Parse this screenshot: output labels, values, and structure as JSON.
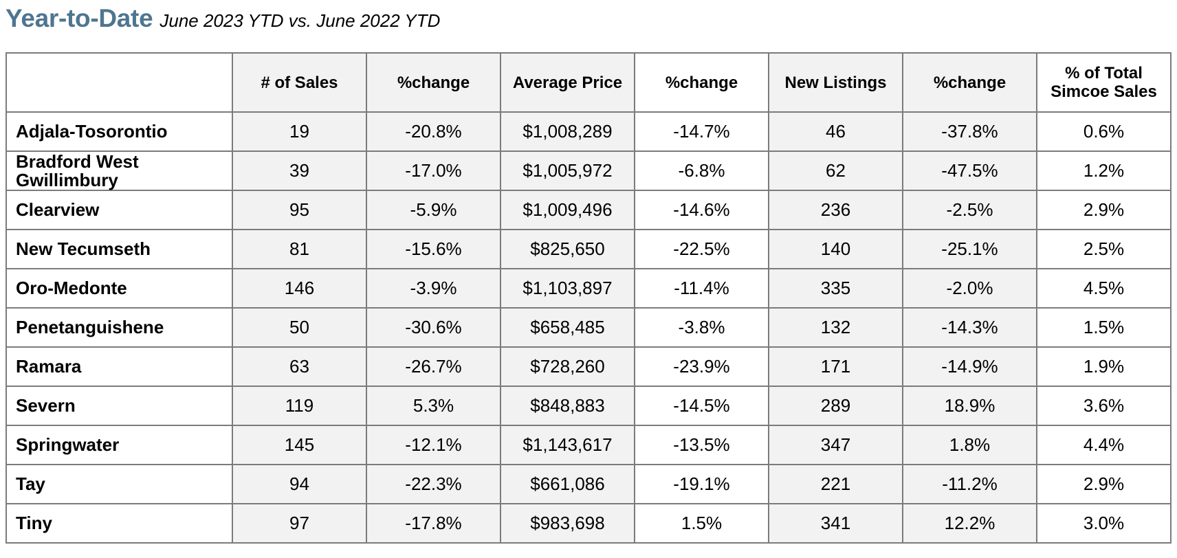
{
  "heading": {
    "title": "Year-to-Date",
    "subtitle": "June 2023 YTD vs. June 2022 YTD"
  },
  "columns": [
    "",
    "# of Sales",
    "%change",
    "Average Price",
    "%change",
    "New Listings",
    "%change",
    "% of Total Simcoe Sales"
  ],
  "rows": [
    [
      "Adjala-Tosorontio",
      "19",
      "-20.8%",
      "$1,008,289",
      "-14.7%",
      "46",
      "-37.8%",
      "0.6%"
    ],
    [
      "Bradford West Gwillimbury",
      "39",
      "-17.0%",
      "$1,005,972",
      "-6.8%",
      "62",
      "-47.5%",
      "1.2%"
    ],
    [
      "Clearview",
      "95",
      "-5.9%",
      "$1,009,496",
      "-14.6%",
      "236",
      "-2.5%",
      "2.9%"
    ],
    [
      "New Tecumseth",
      "81",
      "-15.6%",
      "$825,650",
      "-22.5%",
      "140",
      "-25.1%",
      "2.5%"
    ],
    [
      "Oro-Medonte",
      "146",
      "-3.9%",
      "$1,103,897",
      "-11.4%",
      "335",
      "-2.0%",
      "4.5%"
    ],
    [
      "Penetanguishene",
      "50",
      "-30.6%",
      "$658,485",
      "-3.8%",
      "132",
      "-14.3%",
      "1.5%"
    ],
    [
      "Ramara",
      "63",
      "-26.7%",
      "$728,260",
      "-23.9%",
      "171",
      "-14.9%",
      "1.9%"
    ],
    [
      "Severn",
      "119",
      "5.3%",
      "$848,883",
      "-14.5%",
      "289",
      "18.9%",
      "3.6%"
    ],
    [
      "Springwater",
      "145",
      "-12.1%",
      "$1,143,617",
      "-13.5%",
      "347",
      "1.8%",
      "4.4%"
    ],
    [
      "Tay",
      "94",
      "-22.3%",
      "$661,086",
      "-19.1%",
      "221",
      "-11.2%",
      "2.9%"
    ],
    [
      "Tiny",
      "97",
      "-17.8%",
      "$983,698",
      "1.5%",
      "341",
      "12.2%",
      "3.0%"
    ]
  ],
  "colors": {
    "title": "#4f7590",
    "border": "#7b7b7b",
    "shaded_column": "#f2f2f2"
  }
}
